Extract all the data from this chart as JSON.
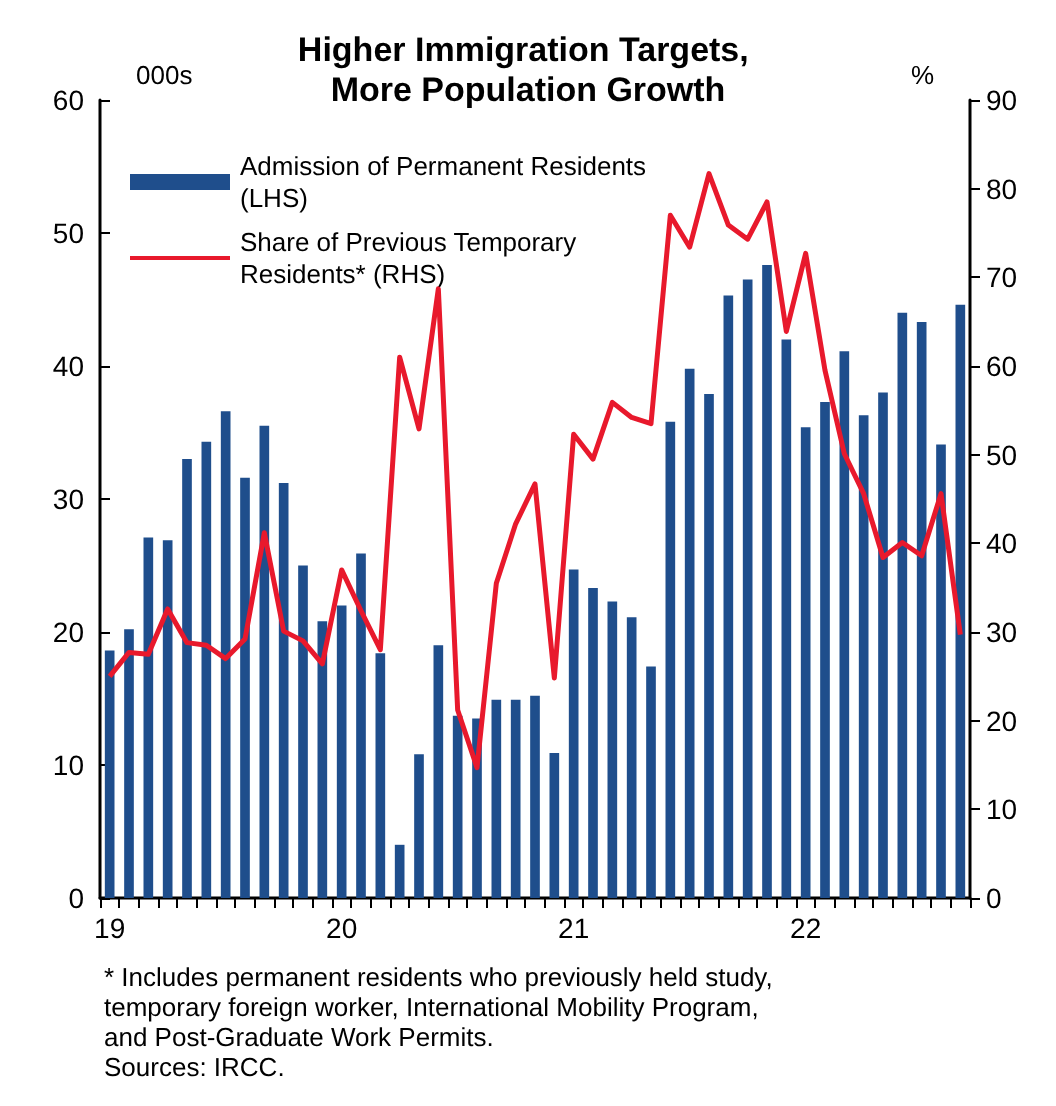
{
  "chart_data": {
    "type": "bar",
    "title": "Higher Immigration Targets, More Population Growth",
    "ylabel": "000s",
    "y2label": "%",
    "categories": [
      "19",
      null,
      null,
      null,
      null,
      null,
      null,
      null,
      null,
      null,
      null,
      null,
      "20",
      null,
      null,
      null,
      null,
      null,
      null,
      null,
      null,
      null,
      null,
      null,
      "21",
      null,
      null,
      null,
      null,
      null,
      null,
      null,
      null,
      null,
      null,
      null,
      "22",
      null,
      null,
      null,
      null,
      null,
      null,
      null,
      null
    ],
    "series": [
      {
        "name": "Admission of Permanent Residents (LHS)",
        "type": "bar",
        "color": "#1f4e8c",
        "values": [
          18.6,
          20.2,
          27.1,
          26.9,
          33.0,
          34.3,
          36.6,
          31.6,
          35.5,
          31.2,
          25.0,
          20.8,
          22,
          25.9,
          18.4,
          4.0,
          10.8,
          19.0,
          13.7,
          13.5,
          14.9,
          14.9,
          15.2,
          10.9,
          24.7,
          23.3,
          22.3,
          21.1,
          17.4,
          35.8,
          39.8,
          37.9,
          45.3,
          46.5,
          47.6,
          42,
          35.4,
          37.3,
          41.1,
          36.3,
          38.0,
          44.0,
          43.3,
          34.1,
          44.6
        ]
      },
      {
        "name": "Share of Previous Temporary Residents* (RHS)",
        "type": "line",
        "axis": "y2",
        "color": "#e8192c",
        "values": [
          25,
          27.7,
          27.5,
          32.6,
          28.8,
          28.5,
          27.0,
          29.2,
          41.2,
          30.1,
          29.0,
          26.4,
          37.0,
          32.4,
          28.0,
          61.0,
          52.9,
          68.7,
          21.2,
          14.7,
          35.5,
          42.2,
          46.7,
          24.8,
          52.3,
          49.5,
          55.9,
          54.2,
          53.5,
          77.0,
          73.4,
          81.7,
          75.9,
          74.3,
          78.5,
          63.9,
          72.7,
          59.5,
          50.1,
          45.6,
          38.4,
          40.1,
          38.6,
          45.6,
          29.7
        ]
      }
    ],
    "ylim": [
      0,
      60
    ],
    "yticks": [
      0,
      10,
      20,
      30,
      40,
      50,
      60
    ],
    "y2lim": [
      0,
      90
    ],
    "y2ticks": [
      0,
      10,
      20,
      30,
      40,
      50,
      60,
      70,
      80,
      90
    ],
    "grid": false,
    "legend": "top left",
    "marker": "none",
    "line_style": "solid",
    "annotations": [
      "* Includes permanent residents who previously held study, temporary foreign worker, International Mobility Program, and Post-Graduate Work Permits.",
      "Sources: IRCC."
    ]
  }
}
